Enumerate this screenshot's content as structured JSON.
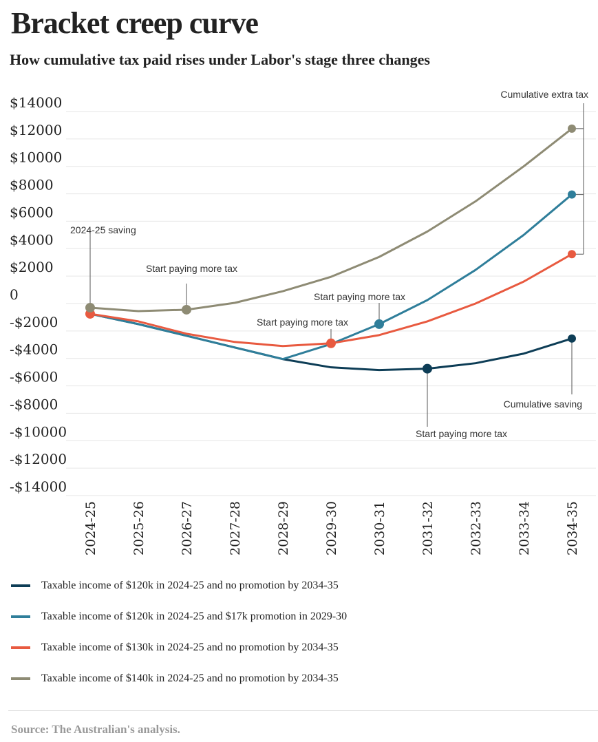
{
  "header": {
    "title": "Bracket creep curve",
    "subtitle": "How cumulative tax paid rises under Labor's stage three changes"
  },
  "chart_data": {
    "type": "line",
    "title": "Bracket creep curve",
    "subtitle": "How cumulative tax paid rises under Labor's stage three changes",
    "xlabel": "",
    "ylabel": "",
    "ylim": [
      -14000,
      14000
    ],
    "y_ticks": [
      14000,
      12000,
      10000,
      8000,
      6000,
      4000,
      2000,
      0,
      -2000,
      -4000,
      -6000,
      -8000,
      -10000,
      -12000,
      -14000
    ],
    "y_tick_labels": [
      "$14000",
      "$12000",
      "$10000",
      "$8000",
      "$6000",
      "$4000",
      "$2000",
      "0",
      "-$2000",
      "-$4000",
      "-$6000",
      "-$8000",
      "-$10000",
      "-$12000",
      "-$14000"
    ],
    "categories": [
      "2024-25",
      "2025-26",
      "2026-27",
      "2027-28",
      "2028-29",
      "2029-30",
      "2030-31",
      "2031-32",
      "2032-33",
      "2033-34",
      "2034-35"
    ],
    "series": [
      {
        "name": "Taxable income of $120k in 2024-25 and no promotion by 2034-35",
        "color": "#0d3d56",
        "values": [
          -750,
          -1500,
          -2350,
          -3200,
          -4050,
          -4650,
          -4850,
          -4750,
          -4350,
          -3650,
          -2550
        ],
        "markers": [
          7,
          10
        ]
      },
      {
        "name": "Taxable income of $120k in 2024-25 and $17k promotion in 2029-30",
        "color": "#2f7e9a",
        "values": [
          -750,
          -1500,
          -2350,
          -3200,
          -4050,
          -2950,
          -1500,
          250,
          2450,
          5000,
          7950
        ],
        "markers": [
          6,
          10
        ]
      },
      {
        "name": "Taxable income of $130k in 2024-25 and no promotion by 2034-35",
        "color": "#e85a40",
        "values": [
          -750,
          -1300,
          -2200,
          -2800,
          -3100,
          -2900,
          -2300,
          -1300,
          0,
          1600,
          3600
        ],
        "markers": [
          0,
          5,
          10
        ]
      },
      {
        "name": "Taxable income of $140k in 2024-25 and no promotion by 2034-35",
        "color": "#8e8b74",
        "values": [
          -300,
          -550,
          -450,
          50,
          900,
          1950,
          3400,
          5250,
          7450,
          10000,
          12750
        ],
        "markers": [
          0,
          2,
          10
        ]
      }
    ],
    "annotations": [
      {
        "text": "2024-25 saving",
        "x_index": 0
      },
      {
        "text": "Start paying more tax",
        "x_index": 2
      },
      {
        "text": "Start paying more tax",
        "x_index": 5
      },
      {
        "text": "Start paying more tax",
        "x_index": 6
      },
      {
        "text": "Start paying more tax",
        "x_index": 7
      },
      {
        "text": "Cumulative extra tax",
        "x_index": 10
      },
      {
        "text": "Cumulative saving",
        "x_index": 10
      }
    ]
  },
  "legend": {
    "items": [
      {
        "label": "Taxable income of $120k in 2024-25 and no promotion by 2034-35",
        "color": "#0d3d56"
      },
      {
        "label": "Taxable income of $120k in 2024-25 and $17k promotion in 2029-30",
        "color": "#2f7e9a"
      },
      {
        "label": "Taxable income of $130k in 2024-25 and no promotion by 2034-35",
        "color": "#e85a40"
      },
      {
        "label": "Taxable income of $140k in 2024-25 and no promotion by 2034-35",
        "color": "#8e8b74"
      }
    ]
  },
  "footer": {
    "source": "Source: The Australian's analysis."
  }
}
